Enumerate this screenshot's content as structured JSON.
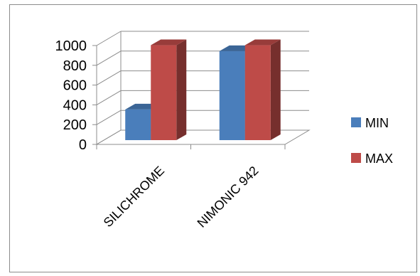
{
  "chart_data": {
    "type": "bar",
    "style": "3d-clustered-column",
    "categories": [
      "SILICHROME",
      "NIMONIC 942"
    ],
    "series": [
      {
        "name": "MIN",
        "values": [
          310,
          900
        ],
        "color": "#4a7ebb"
      },
      {
        "name": "MAX",
        "values": [
          960,
          960
        ],
        "color": "#be4b48"
      }
    ],
    "yticks": [
      0,
      200,
      400,
      600,
      800,
      1000
    ],
    "ylim": [
      0,
      1000
    ],
    "grid": true,
    "legend_position": "right"
  }
}
